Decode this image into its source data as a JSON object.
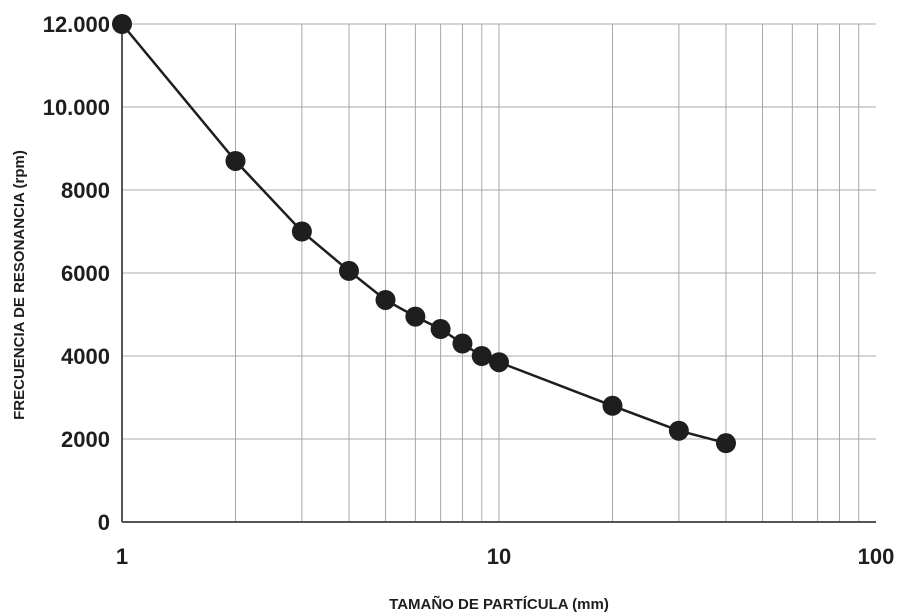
{
  "chart_data": {
    "type": "line",
    "xlabel": "TAMAÑO DE PARTÍCULA (mm)",
    "ylabel": "FRECUENCIA DE RESONANCIA (rpm)",
    "xscale": "log",
    "xlim": [
      1,
      100
    ],
    "ylim": [
      0,
      12000
    ],
    "grid": true,
    "xticks": [
      1,
      10,
      100
    ],
    "xtick_labels": [
      "1",
      "10",
      "100"
    ],
    "yticks": [
      0,
      2000,
      4000,
      6000,
      8000,
      10000,
      12000
    ],
    "ytick_labels": [
      "0",
      "2000",
      "4000",
      "6000",
      "8000",
      "10.000",
      "12.000"
    ],
    "series": [
      {
        "x": [
          1,
          2,
          3,
          4,
          5,
          6,
          7,
          8,
          9,
          10,
          20,
          30,
          40
        ],
        "y": [
          12000,
          8700,
          7000,
          6050,
          5350,
          4950,
          4650,
          4300,
          4000,
          3850,
          2800,
          2200,
          1900
        ]
      }
    ],
    "colors": {
      "line": "#1e1e1e",
      "grid": "#a8a8a8",
      "axis": "#555555"
    }
  }
}
